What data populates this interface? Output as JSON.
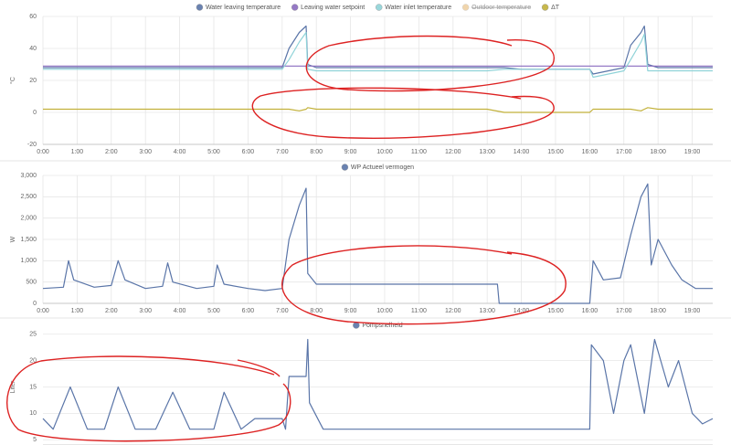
{
  "chart_data": [
    {
      "type": "line",
      "ylabel": "°C",
      "grid": true,
      "xlim": [
        0,
        19.6
      ],
      "xticks": [
        {
          "value": 0,
          "label": "0:00"
        },
        {
          "value": 1,
          "label": "1:00"
        },
        {
          "value": 2,
          "label": "2:00"
        },
        {
          "value": 3,
          "label": "3:00"
        },
        {
          "value": 4,
          "label": "4:00"
        },
        {
          "value": 5,
          "label": "5:00"
        },
        {
          "value": 6,
          "label": "6:00"
        },
        {
          "value": 7,
          "label": "7:00"
        },
        {
          "value": 8,
          "label": "8:00"
        },
        {
          "value": 9,
          "label": "9:00"
        },
        {
          "value": 10,
          "label": "10:00"
        },
        {
          "value": 11,
          "label": "11:00"
        },
        {
          "value": 12,
          "label": "12:00"
        },
        {
          "value": 13,
          "label": "13:00"
        },
        {
          "value": 14,
          "label": "14:00"
        },
        {
          "value": 15,
          "label": "15:00"
        },
        {
          "value": 16,
          "label": "16:00"
        },
        {
          "value": 17,
          "label": "17:00"
        },
        {
          "value": 18,
          "label": "18:00"
        },
        {
          "value": 19,
          "label": "19:00"
        }
      ],
      "ylim": [
        -20,
        60
      ],
      "yticks": [
        -20,
        0,
        20,
        40,
        60
      ],
      "x": [
        0,
        1,
        2,
        3,
        4,
        5,
        6,
        7,
        7.2,
        7.5,
        7.7,
        7.75,
        8,
        9,
        10,
        11,
        12,
        13,
        13.5,
        14,
        15,
        16,
        16.1,
        17,
        17.2,
        17.5,
        17.6,
        17.7,
        18,
        19,
        19.6
      ],
      "series": [
        {
          "name": "Water leaving temperature",
          "color": "#5a75a8",
          "values": [
            28,
            28,
            28,
            28,
            28,
            28,
            28,
            28,
            40,
            50,
            54,
            30,
            28,
            28,
            28,
            28,
            28,
            28,
            28,
            27,
            27,
            27,
            24,
            28,
            42,
            50,
            54,
            30,
            28,
            28,
            28
          ]
        },
        {
          "name": "Leaving water setpoint",
          "color": "#8a6bbf",
          "values": [
            29,
            29,
            29,
            29,
            29,
            29,
            29,
            29,
            29,
            29,
            29,
            29,
            29,
            29,
            29,
            29,
            29,
            29,
            29,
            29,
            29,
            29,
            29,
            29,
            29,
            29,
            29,
            29,
            29,
            29,
            29
          ]
        },
        {
          "name": "Water inlet temperature",
          "color": "#8fd3d8",
          "values": [
            27,
            27,
            27,
            27,
            27,
            27,
            27,
            27,
            33,
            44,
            50,
            27,
            26,
            26,
            26,
            26,
            26,
            26,
            27,
            27,
            27,
            27,
            22,
            26,
            33,
            44,
            49,
            26,
            26,
            26,
            26
          ]
        },
        {
          "name": "Outdoor temperature",
          "color": "#e0a44a",
          "hidden": true
        },
        {
          "name": "ΔT",
          "color": "#c2b13a",
          "values": [
            2,
            2,
            2,
            2,
            2,
            2,
            2,
            2,
            2,
            1,
            2,
            3,
            2,
            2,
            2,
            2,
            2,
            2,
            0,
            0,
            0,
            0,
            2,
            2,
            2,
            1,
            2,
            3,
            2,
            2,
            2
          ]
        }
      ]
    },
    {
      "type": "line",
      "ylabel": "W",
      "grid": true,
      "xlim": [
        0,
        19.6
      ],
      "xticks": [
        {
          "value": 0,
          "label": "0:00"
        },
        {
          "value": 1,
          "label": "1:00"
        },
        {
          "value": 2,
          "label": "2:00"
        },
        {
          "value": 3,
          "label": "3:00"
        },
        {
          "value": 4,
          "label": "4:00"
        },
        {
          "value": 5,
          "label": "5:00"
        },
        {
          "value": 6,
          "label": "6:00"
        },
        {
          "value": 7,
          "label": "7:00"
        },
        {
          "value": 8,
          "label": "8:00"
        },
        {
          "value": 9,
          "label": "9:00"
        },
        {
          "value": 10,
          "label": "10:00"
        },
        {
          "value": 11,
          "label": "11:00"
        },
        {
          "value": 12,
          "label": "12:00"
        },
        {
          "value": 13,
          "label": "13:00"
        },
        {
          "value": 14,
          "label": "14:00"
        },
        {
          "value": 15,
          "label": "15:00"
        },
        {
          "value": 16,
          "label": "16:00"
        },
        {
          "value": 17,
          "label": "17:00"
        },
        {
          "value": 18,
          "label": "18:00"
        },
        {
          "value": 19,
          "label": "19:00"
        }
      ],
      "ylim": [
        0,
        3000
      ],
      "yticks": [
        0,
        500,
        {
          "value": 1000,
          "label": "1,000"
        },
        {
          "value": 1500,
          "label": "1,500"
        },
        {
          "value": 2000,
          "label": "2,000"
        },
        {
          "value": 2500,
          "label": "2,500"
        },
        {
          "value": 3000,
          "label": "3,000"
        }
      ],
      "x": [
        0,
        0.6,
        0.75,
        0.9,
        1.5,
        2,
        2.2,
        2.4,
        3,
        3.5,
        3.65,
        3.8,
        4.5,
        5,
        5.1,
        5.3,
        6,
        6.5,
        7,
        7.2,
        7.5,
        7.7,
        7.75,
        8,
        9,
        10,
        11,
        12,
        13,
        13.3,
        13.35,
        14,
        15,
        16,
        16.1,
        16.4,
        16.9,
        17.2,
        17.5,
        17.7,
        17.8,
        18,
        18.4,
        18.7,
        19.1,
        19.6
      ],
      "series": [
        {
          "name": "WP Actueel vermogen",
          "color": "#5a75a8",
          "values": [
            350,
            380,
            1000,
            550,
            380,
            420,
            1000,
            550,
            350,
            400,
            950,
            500,
            350,
            400,
            900,
            450,
            350,
            300,
            350,
            1500,
            2300,
            2700,
            700,
            450,
            450,
            450,
            450,
            450,
            450,
            450,
            0,
            0,
            0,
            0,
            1000,
            550,
            600,
            1600,
            2500,
            2800,
            900,
            1500,
            900,
            550,
            350,
            350
          ]
        }
      ]
    },
    {
      "type": "line",
      "ylabel": "Liter",
      "grid": true,
      "xlim": [
        0,
        19.6
      ],
      "ylim": [
        4,
        26
      ],
      "yticks": [
        5,
        10,
        15,
        20,
        25
      ],
      "x": [
        0,
        0.3,
        0.8,
        1.3,
        1.8,
        2.2,
        2.7,
        3.3,
        3.8,
        4.3,
        5,
        5.3,
        5.8,
        6.2,
        7,
        7.1,
        7.2,
        7.7,
        7.75,
        7.8,
        8.2,
        9,
        10,
        11,
        12,
        13,
        14,
        15,
        16,
        16.05,
        16.4,
        16.7,
        17,
        17.2,
        17.6,
        17.9,
        18.3,
        18.6,
        19,
        19.3,
        19.6
      ],
      "series": [
        {
          "name": "Pompsnelheid",
          "color": "#5a75a8",
          "values": [
            9,
            7,
            15,
            7,
            7,
            15,
            7,
            7,
            14,
            7,
            7,
            14,
            7,
            9,
            9,
            7,
            17,
            17,
            24,
            12,
            7,
            7,
            7,
            7,
            7,
            7,
            7,
            7,
            7,
            23,
            20,
            10,
            20,
            23,
            10,
            24,
            15,
            20,
            10,
            8,
            9
          ]
        }
      ]
    }
  ]
}
